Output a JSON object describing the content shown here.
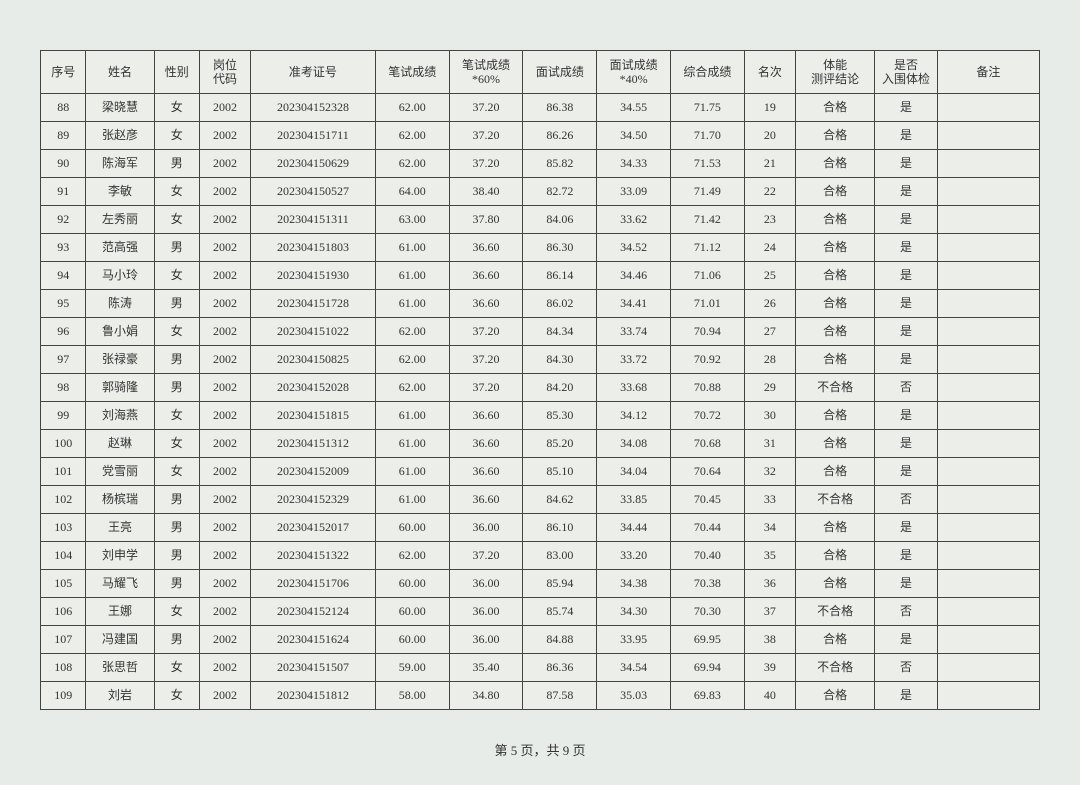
{
  "headers": {
    "seq": "序号",
    "name": "姓名",
    "sex": "性别",
    "post": "岗位\n代码",
    "exam": "准考证号",
    "ws": "笔试成绩",
    "ws60": "笔试成绩\n*60%",
    "is": "面试成绩",
    "is40": "面试成绩\n*40%",
    "tot": "综合成绩",
    "rank": "名次",
    "phys": "体能\n测评结论",
    "enter": "是否\n入围体检",
    "remark": "备注"
  },
  "rows": [
    {
      "seq": "88",
      "name": "梁晓慧",
      "sex": "女",
      "post": "2002",
      "exam": "202304152328",
      "ws": "62.00",
      "ws60": "37.20",
      "is": "86.38",
      "is40": "34.55",
      "tot": "71.75",
      "rank": "19",
      "phys": "合格",
      "enter": "是",
      "remark": ""
    },
    {
      "seq": "89",
      "name": "张赵彦",
      "sex": "女",
      "post": "2002",
      "exam": "202304151711",
      "ws": "62.00",
      "ws60": "37.20",
      "is": "86.26",
      "is40": "34.50",
      "tot": "71.70",
      "rank": "20",
      "phys": "合格",
      "enter": "是",
      "remark": ""
    },
    {
      "seq": "90",
      "name": "陈海军",
      "sex": "男",
      "post": "2002",
      "exam": "202304150629",
      "ws": "62.00",
      "ws60": "37.20",
      "is": "85.82",
      "is40": "34.33",
      "tot": "71.53",
      "rank": "21",
      "phys": "合格",
      "enter": "是",
      "remark": ""
    },
    {
      "seq": "91",
      "name": "李敏",
      "sex": "女",
      "post": "2002",
      "exam": "202304150527",
      "ws": "64.00",
      "ws60": "38.40",
      "is": "82.72",
      "is40": "33.09",
      "tot": "71.49",
      "rank": "22",
      "phys": "合格",
      "enter": "是",
      "remark": ""
    },
    {
      "seq": "92",
      "name": "左秀丽",
      "sex": "女",
      "post": "2002",
      "exam": "202304151311",
      "ws": "63.00",
      "ws60": "37.80",
      "is": "84.06",
      "is40": "33.62",
      "tot": "71.42",
      "rank": "23",
      "phys": "合格",
      "enter": "是",
      "remark": ""
    },
    {
      "seq": "93",
      "name": "范高强",
      "sex": "男",
      "post": "2002",
      "exam": "202304151803",
      "ws": "61.00",
      "ws60": "36.60",
      "is": "86.30",
      "is40": "34.52",
      "tot": "71.12",
      "rank": "24",
      "phys": "合格",
      "enter": "是",
      "remark": ""
    },
    {
      "seq": "94",
      "name": "马小玲",
      "sex": "女",
      "post": "2002",
      "exam": "202304151930",
      "ws": "61.00",
      "ws60": "36.60",
      "is": "86.14",
      "is40": "34.46",
      "tot": "71.06",
      "rank": "25",
      "phys": "合格",
      "enter": "是",
      "remark": ""
    },
    {
      "seq": "95",
      "name": "陈涛",
      "sex": "男",
      "post": "2002",
      "exam": "202304151728",
      "ws": "61.00",
      "ws60": "36.60",
      "is": "86.02",
      "is40": "34.41",
      "tot": "71.01",
      "rank": "26",
      "phys": "合格",
      "enter": "是",
      "remark": ""
    },
    {
      "seq": "96",
      "name": "鲁小娟",
      "sex": "女",
      "post": "2002",
      "exam": "202304151022",
      "ws": "62.00",
      "ws60": "37.20",
      "is": "84.34",
      "is40": "33.74",
      "tot": "70.94",
      "rank": "27",
      "phys": "合格",
      "enter": "是",
      "remark": ""
    },
    {
      "seq": "97",
      "name": "张禄豪",
      "sex": "男",
      "post": "2002",
      "exam": "202304150825",
      "ws": "62.00",
      "ws60": "37.20",
      "is": "84.30",
      "is40": "33.72",
      "tot": "70.92",
      "rank": "28",
      "phys": "合格",
      "enter": "是",
      "remark": ""
    },
    {
      "seq": "98",
      "name": "郭骑隆",
      "sex": "男",
      "post": "2002",
      "exam": "202304152028",
      "ws": "62.00",
      "ws60": "37.20",
      "is": "84.20",
      "is40": "33.68",
      "tot": "70.88",
      "rank": "29",
      "phys": "不合格",
      "enter": "否",
      "remark": ""
    },
    {
      "seq": "99",
      "name": "刘海燕",
      "sex": "女",
      "post": "2002",
      "exam": "202304151815",
      "ws": "61.00",
      "ws60": "36.60",
      "is": "85.30",
      "is40": "34.12",
      "tot": "70.72",
      "rank": "30",
      "phys": "合格",
      "enter": "是",
      "remark": ""
    },
    {
      "seq": "100",
      "name": "赵琳",
      "sex": "女",
      "post": "2002",
      "exam": "202304151312",
      "ws": "61.00",
      "ws60": "36.60",
      "is": "85.20",
      "is40": "34.08",
      "tot": "70.68",
      "rank": "31",
      "phys": "合格",
      "enter": "是",
      "remark": ""
    },
    {
      "seq": "101",
      "name": "党雪丽",
      "sex": "女",
      "post": "2002",
      "exam": "202304152009",
      "ws": "61.00",
      "ws60": "36.60",
      "is": "85.10",
      "is40": "34.04",
      "tot": "70.64",
      "rank": "32",
      "phys": "合格",
      "enter": "是",
      "remark": ""
    },
    {
      "seq": "102",
      "name": "杨槟瑞",
      "sex": "男",
      "post": "2002",
      "exam": "202304152329",
      "ws": "61.00",
      "ws60": "36.60",
      "is": "84.62",
      "is40": "33.85",
      "tot": "70.45",
      "rank": "33",
      "phys": "不合格",
      "enter": "否",
      "remark": ""
    },
    {
      "seq": "103",
      "name": "王亮",
      "sex": "男",
      "post": "2002",
      "exam": "202304152017",
      "ws": "60.00",
      "ws60": "36.00",
      "is": "86.10",
      "is40": "34.44",
      "tot": "70.44",
      "rank": "34",
      "phys": "合格",
      "enter": "是",
      "remark": ""
    },
    {
      "seq": "104",
      "name": "刘申学",
      "sex": "男",
      "post": "2002",
      "exam": "202304151322",
      "ws": "62.00",
      "ws60": "37.20",
      "is": "83.00",
      "is40": "33.20",
      "tot": "70.40",
      "rank": "35",
      "phys": "合格",
      "enter": "是",
      "remark": ""
    },
    {
      "seq": "105",
      "name": "马耀飞",
      "sex": "男",
      "post": "2002",
      "exam": "202304151706",
      "ws": "60.00",
      "ws60": "36.00",
      "is": "85.94",
      "is40": "34.38",
      "tot": "70.38",
      "rank": "36",
      "phys": "合格",
      "enter": "是",
      "remark": ""
    },
    {
      "seq": "106",
      "name": "王娜",
      "sex": "女",
      "post": "2002",
      "exam": "202304152124",
      "ws": "60.00",
      "ws60": "36.00",
      "is": "85.74",
      "is40": "34.30",
      "tot": "70.30",
      "rank": "37",
      "phys": "不合格",
      "enter": "否",
      "remark": ""
    },
    {
      "seq": "107",
      "name": "冯建国",
      "sex": "男",
      "post": "2002",
      "exam": "202304151624",
      "ws": "60.00",
      "ws60": "36.00",
      "is": "84.88",
      "is40": "33.95",
      "tot": "69.95",
      "rank": "38",
      "phys": "合格",
      "enter": "是",
      "remark": ""
    },
    {
      "seq": "108",
      "name": "张思哲",
      "sex": "女",
      "post": "2002",
      "exam": "202304151507",
      "ws": "59.00",
      "ws60": "35.40",
      "is": "86.36",
      "is40": "34.54",
      "tot": "69.94",
      "rank": "39",
      "phys": "不合格",
      "enter": "否",
      "remark": ""
    },
    {
      "seq": "109",
      "name": "刘岩",
      "sex": "女",
      "post": "2002",
      "exam": "202304151812",
      "ws": "58.00",
      "ws60": "34.80",
      "is": "87.58",
      "is40": "35.03",
      "tot": "69.83",
      "rank": "40",
      "phys": "合格",
      "enter": "是",
      "remark": ""
    }
  ],
  "footer": "第 5 页，共 9 页"
}
